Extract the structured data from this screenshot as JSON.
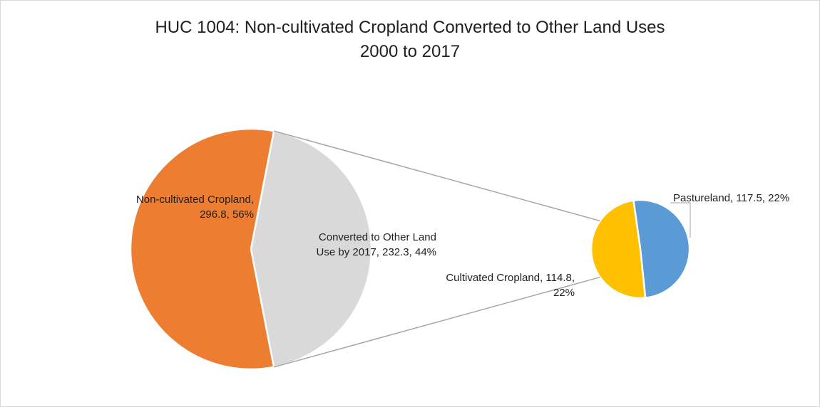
{
  "chart_data": {
    "type": "pie",
    "subtype": "pie-of-pie",
    "title_line1": "HUC 1004: Non-cultivated Cropland Converted to Other Land Uses",
    "title_line2": "2000 to 2017",
    "primary_pie": [
      {
        "name": "Non-cultivated Cropland",
        "value": 296.8,
        "percent": 56,
        "color": "#ED7D31",
        "label_line1": "Non-cultivated Cropland,",
        "label_line2": "296.8, 56%"
      },
      {
        "name": "Converted to Other Land Use by 2017",
        "value": 232.3,
        "percent": 44,
        "color": "#D9D9D9",
        "label_line1": "Converted to Other Land",
        "label_line2": "Use by 2017, 232.3, 44%"
      }
    ],
    "secondary_pie": [
      {
        "name": "Pastureland",
        "value": 117.5,
        "percent": 22,
        "color": "#5B9BD5",
        "label_line1": "Pastureland, 117.5, 22%"
      },
      {
        "name": "Cultivated Cropland",
        "value": 114.8,
        "percent": 22,
        "color": "#FFC000",
        "label_line1": "Cultivated Cropland, 114.8,",
        "label_line2": "22%"
      }
    ],
    "connector_color": "#A6A6A6"
  }
}
